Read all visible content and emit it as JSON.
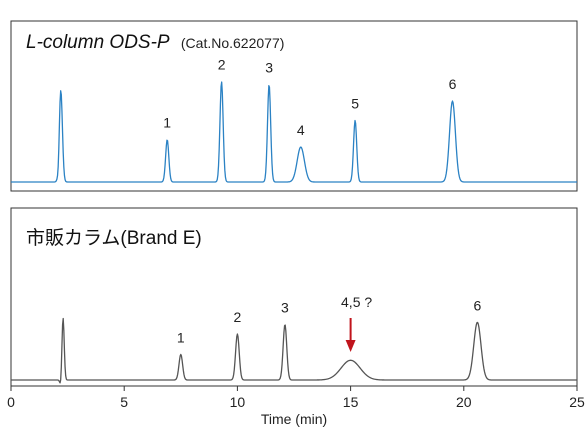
{
  "chart_data": [
    {
      "type": "line",
      "title": "L-column ODS-P",
      "subtitle": "(Cat.No.622077)",
      "color": "#2b82c4",
      "xlim": [
        0,
        25
      ],
      "peaks": [
        {
          "label": "",
          "x": 2.2,
          "height": 1.0
        },
        {
          "label": "1",
          "x": 6.9,
          "height": 0.46
        },
        {
          "label": "2",
          "x": 9.3,
          "height": 1.09
        },
        {
          "label": "3",
          "x": 11.4,
          "height": 1.06
        },
        {
          "label": "4",
          "x": 12.8,
          "height": 0.38
        },
        {
          "label": "5",
          "x": 15.2,
          "height": 0.67
        },
        {
          "label": "6",
          "x": 19.5,
          "height": 0.88
        }
      ]
    },
    {
      "type": "line",
      "title": "市販カラム(Brand E)",
      "subtitle": "",
      "color": "#555555",
      "xlim": [
        0,
        25
      ],
      "annotation": {
        "label": "4,5 ?",
        "x": 15.0,
        "arrow_color": "#c0141c"
      },
      "peaks": [
        {
          "label": "",
          "x": 2.3,
          "height": 0.85
        },
        {
          "label": "1",
          "x": 7.5,
          "height": 0.35
        },
        {
          "label": "2",
          "x": 10.0,
          "height": 0.63
        },
        {
          "label": "3",
          "x": 12.1,
          "height": 0.76
        },
        {
          "label": "",
          "x": 15.0,
          "height": 0.27
        },
        {
          "label": "6",
          "x": 20.6,
          "height": 0.79
        }
      ]
    }
  ],
  "x_axis": {
    "label": "Time (min)",
    "ticks": [
      0,
      5,
      10,
      15,
      20,
      25
    ]
  }
}
